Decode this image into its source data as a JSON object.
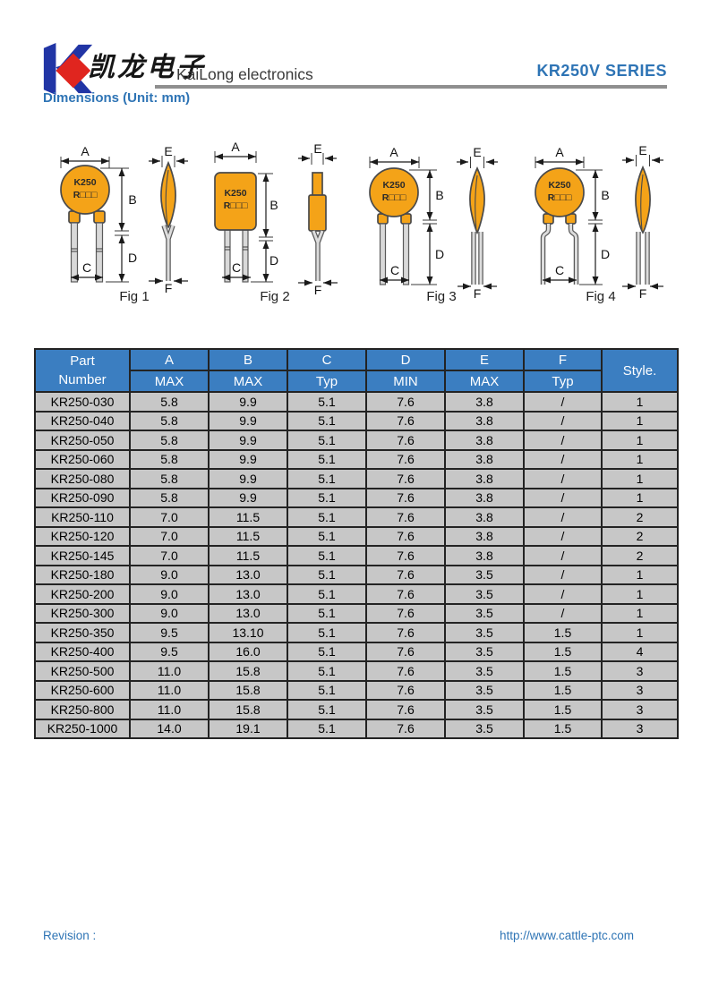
{
  "header": {
    "logo_text_cn": "凯龙电子",
    "company_name": "KaiLong electronics",
    "series_title": "KR250V SERIES"
  },
  "section_title": "Dimensions (Unit: mm)",
  "marking": {
    "line1": "K250",
    "line2": "R□□□"
  },
  "dims": {
    "a": "A",
    "b": "B",
    "c": "C",
    "d": "D",
    "e": "E",
    "f": "F"
  },
  "figures": [
    {
      "caption": "Fig 1"
    },
    {
      "caption": "Fig 2"
    },
    {
      "caption": "Fig 3"
    },
    {
      "caption": "Fig 4"
    }
  ],
  "table": {
    "part_col": {
      "line1": "Part",
      "line2": "Number"
    },
    "style_col": "Style.",
    "columns": [
      {
        "name": "A",
        "spec": "MAX"
      },
      {
        "name": "B",
        "spec": "MAX"
      },
      {
        "name": "C",
        "spec": "Typ"
      },
      {
        "name": "D",
        "spec": "MIN"
      },
      {
        "name": "E",
        "spec": "MAX"
      },
      {
        "name": "F",
        "spec": "Typ"
      }
    ],
    "rows": [
      {
        "part": "KR250-030",
        "a": "5.8",
        "b": "9.9",
        "c": "5.1",
        "d": "7.6",
        "e": "3.8",
        "f": "/",
        "style": "1"
      },
      {
        "part": "KR250-040",
        "a": "5.8",
        "b": "9.9",
        "c": "5.1",
        "d": "7.6",
        "e": "3.8",
        "f": "/",
        "style": "1"
      },
      {
        "part": "KR250-050",
        "a": "5.8",
        "b": "9.9",
        "c": "5.1",
        "d": "7.6",
        "e": "3.8",
        "f": "/",
        "style": "1"
      },
      {
        "part": "KR250-060",
        "a": "5.8",
        "b": "9.9",
        "c": "5.1",
        "d": "7.6",
        "e": "3.8",
        "f": "/",
        "style": "1"
      },
      {
        "part": "KR250-080",
        "a": "5.8",
        "b": "9.9",
        "c": "5.1",
        "d": "7.6",
        "e": "3.8",
        "f": "/",
        "style": "1"
      },
      {
        "part": "KR250-090",
        "a": "5.8",
        "b": "9.9",
        "c": "5.1",
        "d": "7.6",
        "e": "3.8",
        "f": "/",
        "style": "1"
      },
      {
        "part": "KR250-110",
        "a": "7.0",
        "b": "11.5",
        "c": "5.1",
        "d": "7.6",
        "e": "3.8",
        "f": "/",
        "style": "2"
      },
      {
        "part": "KR250-120",
        "a": "7.0",
        "b": "11.5",
        "c": "5.1",
        "d": "7.6",
        "e": "3.8",
        "f": "/",
        "style": "2"
      },
      {
        "part": "KR250-145",
        "a": "7.0",
        "b": "11.5",
        "c": "5.1",
        "d": "7.6",
        "e": "3.8",
        "f": "/",
        "style": "2"
      },
      {
        "part": "KR250-180",
        "a": "9.0",
        "b": "13.0",
        "c": "5.1",
        "d": "7.6",
        "e": "3.5",
        "f": "/",
        "style": "1"
      },
      {
        "part": "KR250-200",
        "a": "9.0",
        "b": "13.0",
        "c": "5.1",
        "d": "7.6",
        "e": "3.5",
        "f": "/",
        "style": "1"
      },
      {
        "part": "KR250-300",
        "a": "9.0",
        "b": "13.0",
        "c": "5.1",
        "d": "7.6",
        "e": "3.5",
        "f": "/",
        "style": "1"
      },
      {
        "part": "KR250-350",
        "a": "9.5",
        "b": "13.10",
        "c": "5.1",
        "d": "7.6",
        "e": "3.5",
        "f": "1.5",
        "style": "1"
      },
      {
        "part": "KR250-400",
        "a": "9.5",
        "b": "16.0",
        "c": "5.1",
        "d": "7.6",
        "e": "3.5",
        "f": "1.5",
        "style": "4"
      },
      {
        "part": "KR250-500",
        "a": "11.0",
        "b": "15.8",
        "c": "5.1",
        "d": "7.6",
        "e": "3.5",
        "f": "1.5",
        "style": "3"
      },
      {
        "part": "KR250-600",
        "a": "11.0",
        "b": "15.8",
        "c": "5.1",
        "d": "7.6",
        "e": "3.5",
        "f": "1.5",
        "style": "3"
      },
      {
        "part": "KR250-800",
        "a": "11.0",
        "b": "15.8",
        "c": "5.1",
        "d": "7.6",
        "e": "3.5",
        "f": "1.5",
        "style": "3"
      },
      {
        "part": "KR250-1000",
        "a": "14.0",
        "b": "19.1",
        "c": "5.1",
        "d": "7.6",
        "e": "3.5",
        "f": "1.5",
        "style": "3"
      }
    ]
  },
  "footer": {
    "revision_label": "Revision :",
    "website": "http://www.cattle-ptc.com"
  },
  "colors": {
    "accent_blue": "#2e74b5",
    "table_header_blue": "#3b7ec1",
    "row_gray": "#c7c7c7",
    "body_orange": "#f4a318",
    "logo_blue": "#2135a5",
    "logo_red": "#e0251f"
  }
}
